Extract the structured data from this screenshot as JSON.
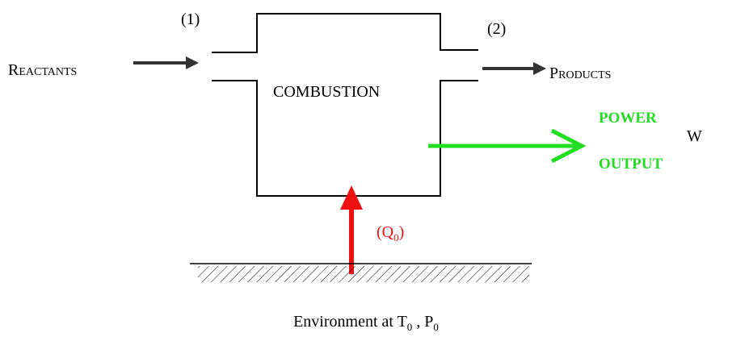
{
  "labels": {
    "inlet": "(1)",
    "outlet": "(2)",
    "reactants": "Reactants",
    "products": "Products",
    "chamber": "COMBUSTION",
    "power_line1": "POWER",
    "power_line2": "OUTPUT",
    "work": "W",
    "heat": {
      "open": "(Q",
      "sub": "0",
      "close": ")"
    },
    "environment": {
      "text": "Environment at T",
      "sub1": "0",
      "mid": " , P",
      "sub2": "0"
    }
  }
}
